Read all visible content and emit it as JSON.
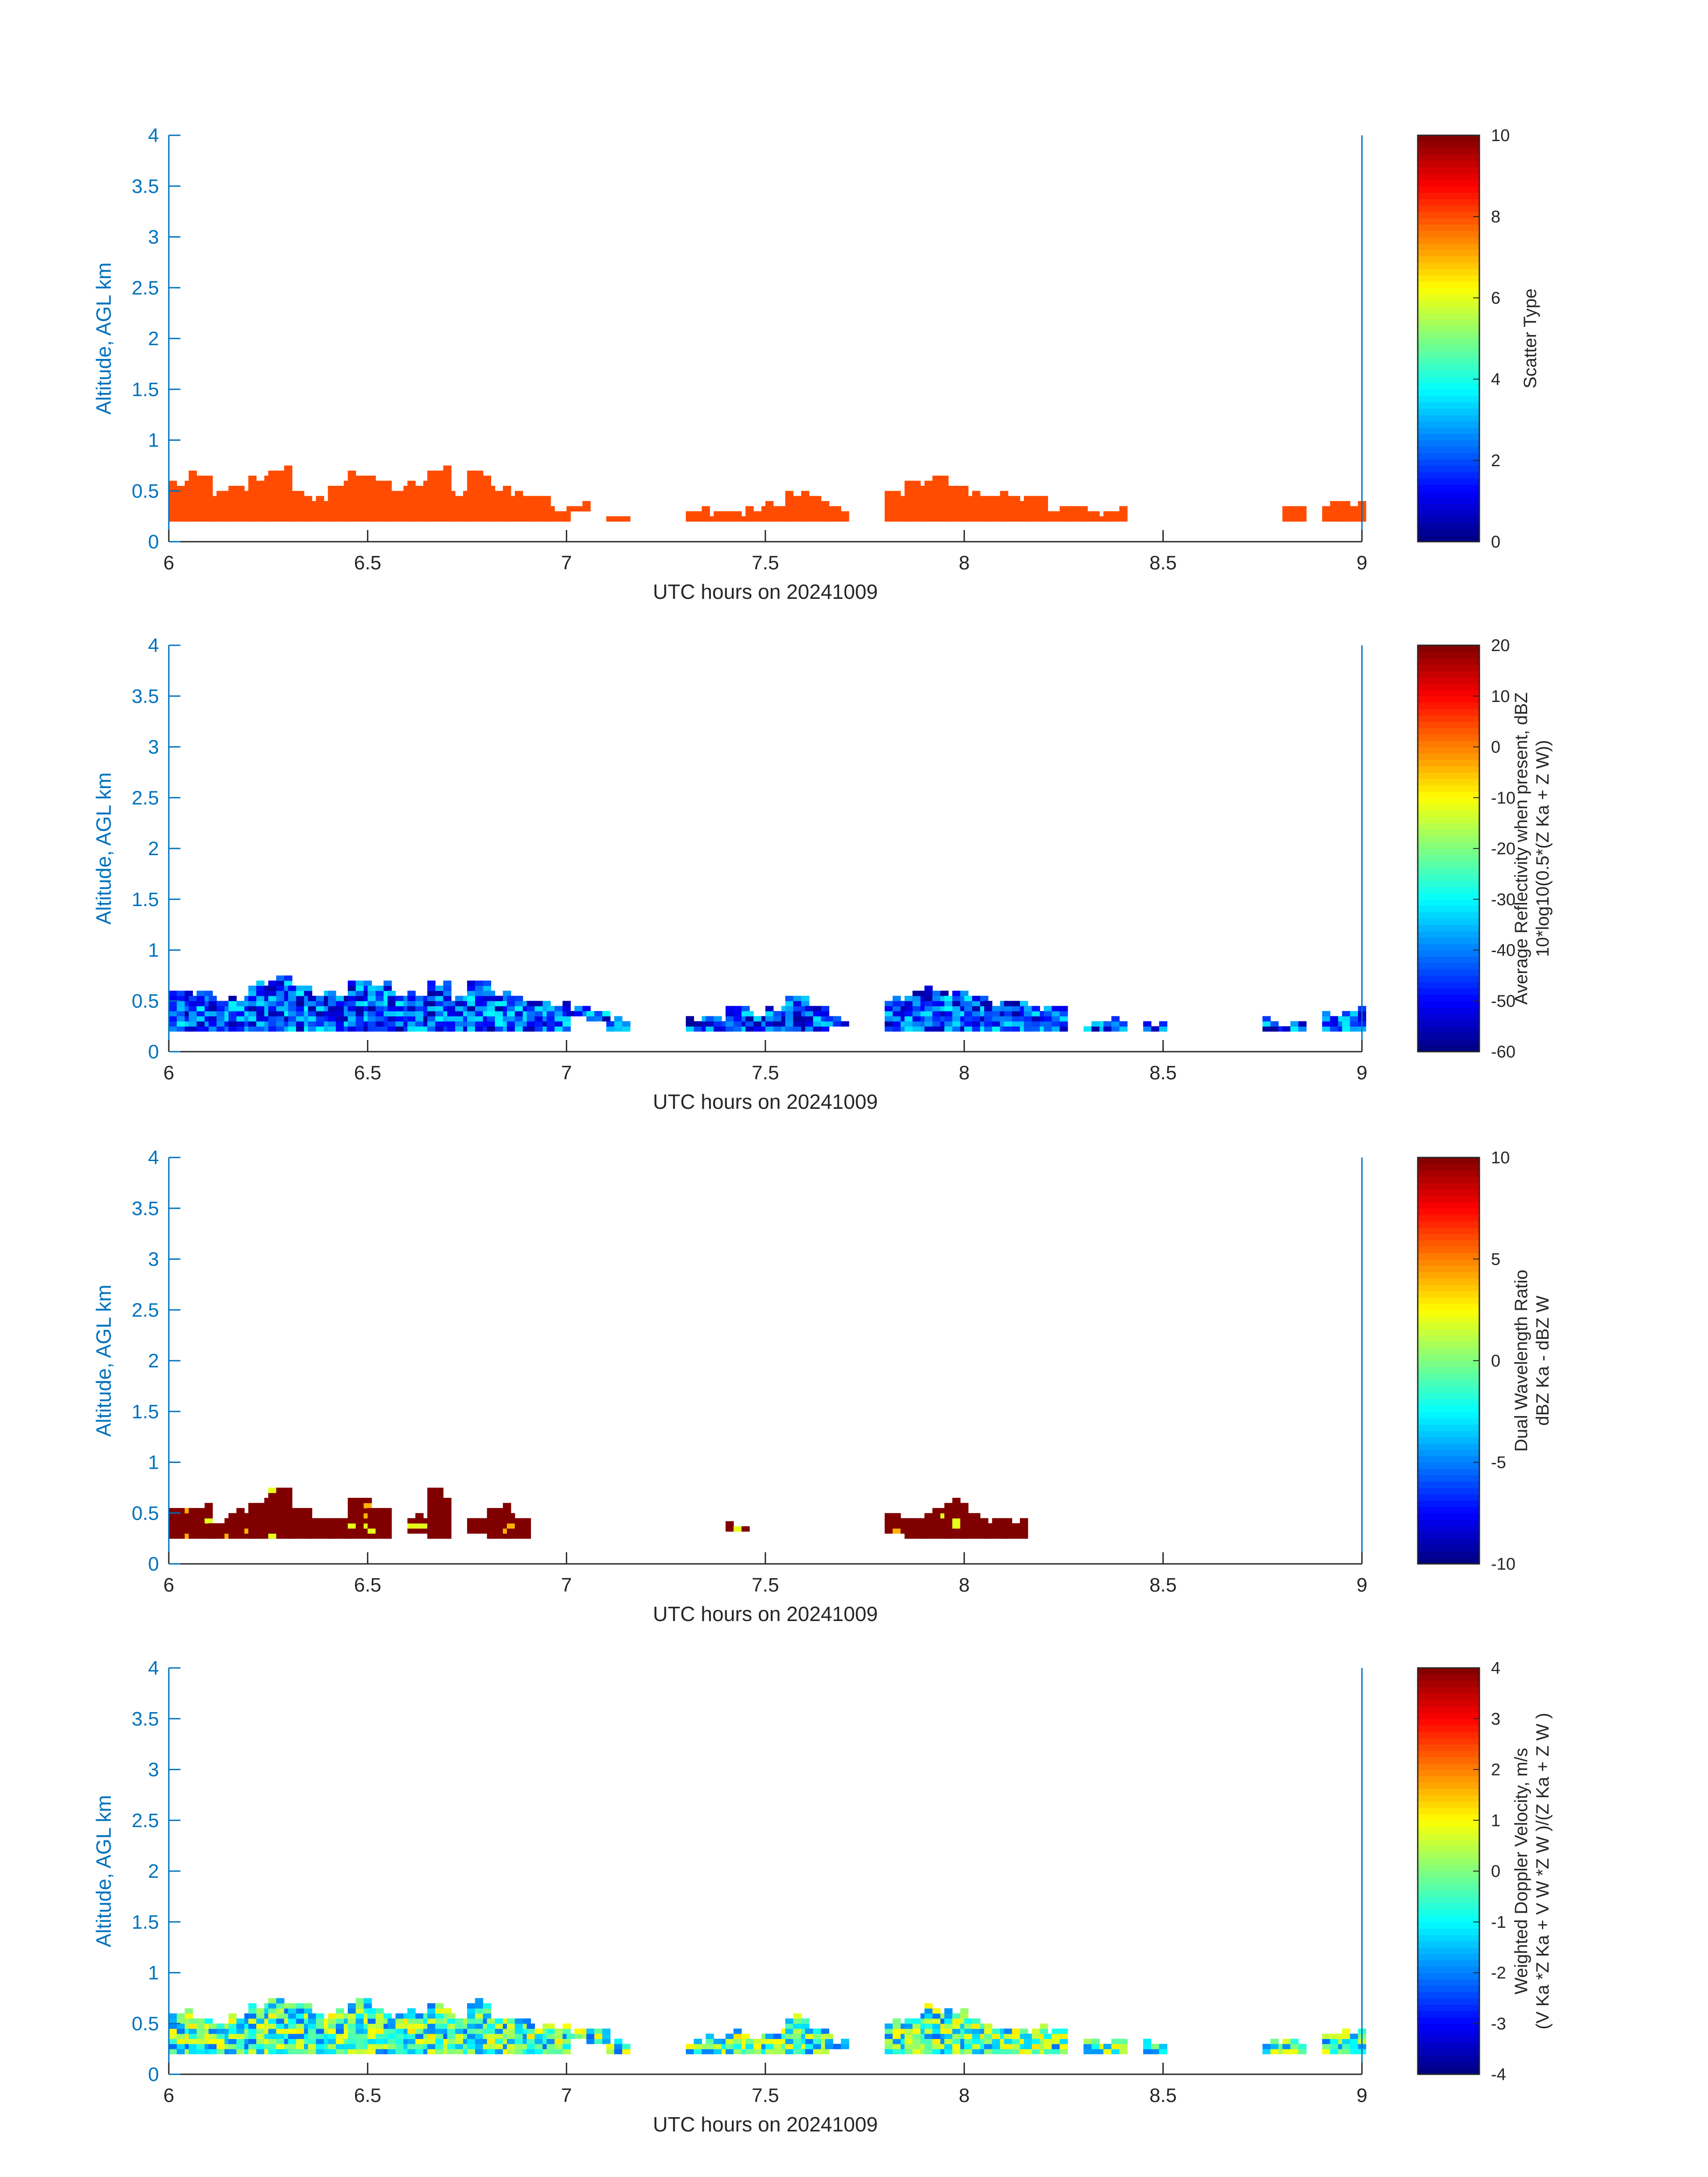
{
  "figure": {
    "xlabel": "UTC hours on 20241009",
    "ylabel": "Altitude, AGL km",
    "xlim": [
      6,
      9
    ],
    "ylim": [
      0,
      4
    ],
    "xticks": [
      "6",
      "6.5",
      "7",
      "7.5",
      "8",
      "8.5",
      "9"
    ],
    "yticks": [
      "0",
      "0.5",
      "1",
      "1.5",
      "2",
      "2.5",
      "3",
      "3.5",
      "4"
    ],
    "colors": {
      "yaxis": "#0072BD",
      "xaxis": "#262626",
      "frame": "#0072BD"
    },
    "colormap": "jet"
  },
  "chart_data": [
    {
      "type": "heatmap",
      "name": "scatter_type",
      "xlabel": "UTC hours on 20241009",
      "ylabel": "Altitude, AGL km",
      "colorbar": {
        "label_lines": [
          "Scatter Type"
        ],
        "range": [
          0,
          10
        ],
        "ticks": [
          "0",
          "2",
          "4",
          "6",
          "8",
          "10"
        ]
      },
      "fill": {
        "mode": "constant",
        "value": 8
      },
      "profile": [
        [
          6.0,
          0.2,
          0.55
        ],
        [
          6.05,
          0.2,
          0.62
        ],
        [
          6.1,
          0.2,
          0.45
        ],
        [
          6.15,
          0.2,
          0.5
        ],
        [
          6.2,
          0.2,
          0.6
        ],
        [
          6.25,
          0.2,
          0.68
        ],
        [
          6.3,
          0.2,
          0.45
        ],
        [
          6.35,
          0.2,
          0.4
        ],
        [
          6.4,
          0.2,
          0.52
        ],
        [
          6.45,
          0.2,
          0.65
        ],
        [
          6.5,
          0.2,
          0.6
        ],
        [
          6.55,
          0.2,
          0.5
        ],
        [
          6.6,
          0.2,
          0.55
        ],
        [
          6.65,
          0.2,
          0.68
        ],
        [
          6.7,
          0.2,
          0.45
        ],
        [
          6.75,
          0.2,
          0.65
        ],
        [
          6.8,
          0.2,
          0.5
        ],
        [
          6.85,
          0.2,
          0.45
        ],
        [
          6.9,
          0.2,
          0.42
        ],
        [
          6.95,
          0.2,
          0.3
        ],
        [
          7.0,
          0.3,
          0.36
        ],
        [
          7.1,
          0.2,
          0.24
        ],
        [
          7.3,
          0.2,
          0.3
        ],
        [
          7.35,
          0.2,
          0.25
        ],
        [
          7.4,
          0.2,
          0.28
        ],
        [
          7.45,
          0.2,
          0.3
        ],
        [
          7.5,
          0.2,
          0.35
        ],
        [
          7.55,
          0.2,
          0.45
        ],
        [
          7.6,
          0.2,
          0.4
        ],
        [
          7.65,
          0.2,
          0.3
        ],
        [
          7.8,
          0.2,
          0.45
        ],
        [
          7.85,
          0.2,
          0.55
        ],
        [
          7.9,
          0.2,
          0.6
        ],
        [
          7.95,
          0.2,
          0.5
        ],
        [
          8.0,
          0.2,
          0.45
        ],
        [
          8.05,
          0.2,
          0.45
        ],
        [
          8.1,
          0.2,
          0.42
        ],
        [
          8.15,
          0.2,
          0.42
        ],
        [
          8.2,
          0.2,
          0.3
        ],
        [
          8.25,
          0.2,
          0.28
        ],
        [
          8.3,
          0.2,
          0.25
        ],
        [
          8.35,
          0.2,
          0.3
        ],
        [
          8.8,
          0.2,
          0.3
        ],
        [
          8.9,
          0.2,
          0.35
        ],
        [
          8.95,
          0.2,
          0.35
        ]
      ]
    },
    {
      "type": "heatmap",
      "name": "average_reflectivity",
      "xlabel": "UTC hours on 20241009",
      "ylabel": "Altitude, AGL km",
      "colorbar": {
        "label_lines": [
          "Average Reflectivity when present, dBZ",
          "10*log10(0.5*(Z Ka + Z W))"
        ],
        "range": [
          -60,
          20
        ],
        "ticks": [
          "-60",
          "-50",
          "-40",
          "-30",
          "-20",
          "-10",
          "0",
          "10",
          "20"
        ]
      },
      "fill": {
        "mode": "reflectivity",
        "range": [
          -58,
          -30
        ]
      },
      "profile": [
        [
          6.0,
          0.2,
          0.6
        ],
        [
          6.05,
          0.2,
          0.55
        ],
        [
          6.1,
          0.2,
          0.5
        ],
        [
          6.15,
          0.2,
          0.5
        ],
        [
          6.2,
          0.2,
          0.62
        ],
        [
          6.25,
          0.2,
          0.72
        ],
        [
          6.3,
          0.2,
          0.62
        ],
        [
          6.35,
          0.2,
          0.55
        ],
        [
          6.4,
          0.2,
          0.58
        ],
        [
          6.45,
          0.2,
          0.68
        ],
        [
          6.5,
          0.2,
          0.62
        ],
        [
          6.55,
          0.2,
          0.55
        ],
        [
          6.6,
          0.2,
          0.58
        ],
        [
          6.65,
          0.2,
          0.68
        ],
        [
          6.7,
          0.2,
          0.5
        ],
        [
          6.75,
          0.2,
          0.68
        ],
        [
          6.8,
          0.2,
          0.55
        ],
        [
          6.85,
          0.2,
          0.5
        ],
        [
          6.9,
          0.2,
          0.48
        ],
        [
          6.95,
          0.2,
          0.45
        ],
        [
          7.0,
          0.35,
          0.42
        ],
        [
          7.05,
          0.3,
          0.38
        ],
        [
          7.1,
          0.2,
          0.28
        ],
        [
          7.3,
          0.2,
          0.3
        ],
        [
          7.35,
          0.2,
          0.32
        ],
        [
          7.4,
          0.2,
          0.42
        ],
        [
          7.45,
          0.2,
          0.35
        ],
        [
          7.5,
          0.2,
          0.4
        ],
        [
          7.55,
          0.2,
          0.55
        ],
        [
          7.6,
          0.2,
          0.45
        ],
        [
          7.65,
          0.25,
          0.3
        ],
        [
          7.8,
          0.2,
          0.5
        ],
        [
          7.85,
          0.2,
          0.55
        ],
        [
          7.9,
          0.2,
          0.6
        ],
        [
          7.95,
          0.2,
          0.55
        ],
        [
          8.0,
          0.2,
          0.5
        ],
        [
          8.05,
          0.2,
          0.45
        ],
        [
          8.1,
          0.2,
          0.48
        ],
        [
          8.15,
          0.2,
          0.42
        ],
        [
          8.2,
          0.2,
          0.42
        ],
        [
          8.3,
          0.2,
          0.28
        ],
        [
          8.35,
          0.2,
          0.3
        ],
        [
          8.45,
          0.2,
          0.28
        ],
        [
          8.75,
          0.2,
          0.28
        ],
        [
          8.8,
          0.2,
          0.28
        ],
        [
          8.9,
          0.2,
          0.35
        ],
        [
          8.95,
          0.2,
          0.4
        ]
      ]
    },
    {
      "type": "heatmap",
      "name": "dual_wavelength_ratio",
      "xlabel": "UTC hours on 20241009",
      "ylabel": "Altitude, AGL km",
      "colorbar": {
        "label_lines": [
          "Dual Wavelength Ratio",
          "dBZ Ka - dBZ W"
        ],
        "range": [
          -10,
          10
        ],
        "ticks": [
          "-10",
          "-5",
          "0",
          "5",
          "10"
        ]
      },
      "fill": {
        "mode": "dwr",
        "value": 10
      },
      "profile": [
        [
          6.0,
          0.25,
          0.5
        ],
        [
          6.05,
          0.25,
          0.55
        ],
        [
          6.1,
          0.25,
          0.38
        ],
        [
          6.15,
          0.25,
          0.5
        ],
        [
          6.2,
          0.25,
          0.6
        ],
        [
          6.25,
          0.25,
          0.72
        ],
        [
          6.3,
          0.25,
          0.55
        ],
        [
          6.35,
          0.25,
          0.4
        ],
        [
          6.4,
          0.25,
          0.45
        ],
        [
          6.45,
          0.25,
          0.62
        ],
        [
          6.5,
          0.25,
          0.55
        ],
        [
          6.6,
          0.3,
          0.45
        ],
        [
          6.65,
          0.25,
          0.68
        ],
        [
          6.75,
          0.3,
          0.42
        ],
        [
          6.8,
          0.25,
          0.52
        ],
        [
          6.85,
          0.25,
          0.45
        ],
        [
          7.4,
          0.32,
          0.35
        ],
        [
          7.8,
          0.3,
          0.45
        ],
        [
          7.85,
          0.25,
          0.42
        ],
        [
          7.9,
          0.25,
          0.5
        ],
        [
          7.95,
          0.25,
          0.6
        ],
        [
          8.0,
          0.25,
          0.45
        ],
        [
          8.05,
          0.25,
          0.4
        ],
        [
          8.1,
          0.25,
          0.4
        ]
      ]
    },
    {
      "type": "heatmap",
      "name": "weighted_doppler_velocity",
      "xlabel": "UTC hours on 20241009",
      "ylabel": "Altitude, AGL km",
      "colorbar": {
        "label_lines": [
          "Weighted Doppler Velocity, m/s",
          "(V Ka *Z Ka + V W *Z W )/(Z Ka + Z W )"
        ],
        "range": [
          -4,
          4
        ],
        "ticks": [
          "-4",
          "-3",
          "-2",
          "-1",
          "0",
          "1",
          "2",
          "3",
          "4"
        ]
      },
      "fill": {
        "mode": "velocity",
        "range": [
          -2.2,
          1.2
        ]
      },
      "profile": [
        [
          6.0,
          0.2,
          0.6
        ],
        [
          6.05,
          0.2,
          0.55
        ],
        [
          6.1,
          0.2,
          0.5
        ],
        [
          6.15,
          0.2,
          0.55
        ],
        [
          6.2,
          0.2,
          0.65
        ],
        [
          6.25,
          0.2,
          0.72
        ],
        [
          6.3,
          0.2,
          0.65
        ],
        [
          6.35,
          0.2,
          0.58
        ],
        [
          6.4,
          0.2,
          0.6
        ],
        [
          6.45,
          0.2,
          0.68
        ],
        [
          6.5,
          0.2,
          0.62
        ],
        [
          6.55,
          0.2,
          0.55
        ],
        [
          6.6,
          0.2,
          0.6
        ],
        [
          6.65,
          0.2,
          0.68
        ],
        [
          6.7,
          0.2,
          0.52
        ],
        [
          6.75,
          0.2,
          0.68
        ],
        [
          6.8,
          0.2,
          0.55
        ],
        [
          6.85,
          0.2,
          0.5
        ],
        [
          6.9,
          0.2,
          0.48
        ],
        [
          6.95,
          0.2,
          0.45
        ],
        [
          7.0,
          0.35,
          0.42
        ],
        [
          7.05,
          0.3,
          0.4
        ],
        [
          7.1,
          0.2,
          0.3
        ],
        [
          7.3,
          0.2,
          0.3
        ],
        [
          7.35,
          0.2,
          0.32
        ],
        [
          7.4,
          0.2,
          0.42
        ],
        [
          7.45,
          0.2,
          0.35
        ],
        [
          7.5,
          0.2,
          0.4
        ],
        [
          7.55,
          0.2,
          0.55
        ],
        [
          7.6,
          0.2,
          0.42
        ],
        [
          7.65,
          0.25,
          0.32
        ],
        [
          7.8,
          0.2,
          0.5
        ],
        [
          7.85,
          0.2,
          0.55
        ],
        [
          7.9,
          0.2,
          0.62
        ],
        [
          7.95,
          0.2,
          0.58
        ],
        [
          8.0,
          0.2,
          0.5
        ],
        [
          8.05,
          0.2,
          0.45
        ],
        [
          8.1,
          0.2,
          0.42
        ],
        [
          8.15,
          0.2,
          0.42
        ],
        [
          8.2,
          0.2,
          0.4
        ],
        [
          8.3,
          0.2,
          0.3
        ],
        [
          8.35,
          0.2,
          0.32
        ],
        [
          8.45,
          0.2,
          0.28
        ],
        [
          8.75,
          0.2,
          0.3
        ],
        [
          8.8,
          0.2,
          0.28
        ],
        [
          8.9,
          0.2,
          0.38
        ],
        [
          8.95,
          0.2,
          0.4
        ]
      ]
    }
  ]
}
